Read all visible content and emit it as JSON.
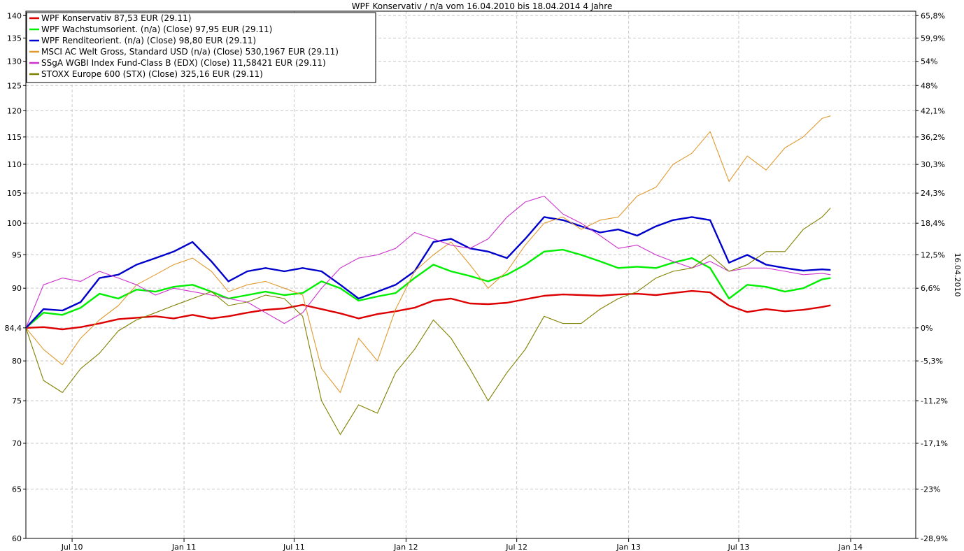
{
  "chart_data": {
    "type": "line",
    "title": "WPF Konservativ / n/a vom 16.04.2010 bis 18.04.2014 4 Jahre",
    "y2label": "16.04.2010",
    "x_ticks": [
      "Jul 10",
      "Jan 11",
      "Jul 11",
      "Jan 12",
      "Jul 12",
      "Jan 13",
      "Jul 13",
      "Jan 14"
    ],
    "x_tick_dates": [
      "2010-07-01",
      "2011-01-01",
      "2011-07-01",
      "2012-01-01",
      "2012-07-01",
      "2013-01-01",
      "2013-07-01",
      "2014-01-01"
    ],
    "xlim": [
      "2010-04-16",
      "2014-04-18"
    ],
    "ylim": [
      60,
      141
    ],
    "y_scale": "log",
    "baseline": 84.4,
    "y_ticks": [
      "60",
      "65",
      "70",
      "75",
      "80",
      "84,4",
      "90",
      "95",
      "100",
      "105",
      "110",
      "115",
      "120",
      "125",
      "130",
      "135",
      "140"
    ],
    "y2_ticks": [
      "65,8%",
      "59,9%",
      "54%",
      "48%",
      "42,1%",
      "36,2%",
      "30,3%",
      "24,3%",
      "18,4%",
      "12,5%",
      "6,6%",
      "0%",
      "-5,3%",
      "-11,2%",
      "-17,1%",
      "-23%",
      "-28,9%"
    ],
    "grid": true,
    "legend_position": "top-left",
    "dates": [
      "2010-04-16",
      "2010-05-15",
      "2010-06-15",
      "2010-07-15",
      "2010-08-15",
      "2010-09-15",
      "2010-10-15",
      "2010-11-15",
      "2010-12-15",
      "2011-01-15",
      "2011-02-15",
      "2011-03-15",
      "2011-04-15",
      "2011-05-15",
      "2011-06-15",
      "2011-07-15",
      "2011-08-15",
      "2011-09-15",
      "2011-10-15",
      "2011-11-15",
      "2011-12-15",
      "2012-01-15",
      "2012-02-15",
      "2012-03-15",
      "2012-04-15",
      "2012-05-15",
      "2012-06-15",
      "2012-07-15",
      "2012-08-15",
      "2012-09-15",
      "2012-10-15",
      "2012-11-15",
      "2012-12-15",
      "2013-01-15",
      "2013-02-15",
      "2013-03-15",
      "2013-04-15",
      "2013-05-15",
      "2013-06-15",
      "2013-07-15",
      "2013-08-15",
      "2013-09-15",
      "2013-10-15",
      "2013-11-15",
      "2013-11-29"
    ],
    "series": [
      {
        "name": "WPF Konservativ 87,53 EUR (29.11)",
        "color": "#dd0000",
        "width": 2.4,
        "values": [
          84.4,
          84.5,
          84.2,
          84.5,
          85.0,
          85.6,
          85.8,
          86.0,
          85.7,
          86.2,
          85.7,
          86.0,
          86.5,
          86.9,
          87.1,
          87.6,
          87.0,
          86.4,
          85.7,
          86.3,
          86.7,
          87.2,
          88.2,
          88.5,
          87.8,
          87.7,
          87.9,
          88.4,
          88.9,
          89.1,
          89.0,
          88.9,
          89.1,
          89.2,
          89.0,
          89.3,
          89.6,
          89.4,
          87.5,
          86.6,
          87.0,
          86.7,
          86.9,
          87.3,
          87.53
        ]
      },
      {
        "name": "WPF Wachstumsorient. (n/a) (Close) 97,95 EUR (29.11)",
        "color": "#00ee00",
        "width": 2.4,
        "values": [
          84.4,
          86.5,
          86.2,
          87.2,
          89.2,
          88.5,
          89.8,
          89.5,
          90.2,
          90.5,
          89.5,
          88.5,
          89.0,
          89.5,
          89.0,
          89.3,
          91.0,
          90.0,
          88.2,
          88.8,
          89.3,
          91.5,
          93.5,
          92.5,
          91.8,
          91.0,
          92.0,
          93.5,
          95.5,
          95.8,
          95.0,
          94.0,
          93.0,
          93.2,
          93.0,
          93.8,
          94.5,
          93.0,
          88.5,
          90.5,
          90.2,
          89.5,
          90.0,
          91.3,
          91.5
        ]
      },
      {
        "name": "WPF Renditeorient. (n/a) (Close) 98,80 EUR (29.11)",
        "color": "#0000cc",
        "width": 2.4,
        "values": [
          84.4,
          87.0,
          86.8,
          88.0,
          91.5,
          92.0,
          93.5,
          94.5,
          95.5,
          97.0,
          94.0,
          91.0,
          92.5,
          93.0,
          92.5,
          93.0,
          92.5,
          90.5,
          88.5,
          89.5,
          90.5,
          92.5,
          97.0,
          97.5,
          96.0,
          95.5,
          94.5,
          97.5,
          101.0,
          100.5,
          99.5,
          98.5,
          99.0,
          98.0,
          99.5,
          100.5,
          101.0,
          100.5,
          93.8,
          95.0,
          93.5,
          93.0,
          92.6,
          92.8,
          92.7
        ]
      },
      {
        "name": "MSCI AC Welt Gross, Standard USD (n/a) (Close) 530,1967 EUR (29.11)",
        "color": "#e09a30",
        "width": 1.1,
        "values": [
          84.4,
          81.5,
          79.5,
          83.0,
          85.5,
          87.5,
          90.5,
          92.0,
          93.5,
          94.5,
          92.5,
          89.5,
          90.5,
          91.0,
          90.0,
          89.0,
          79.0,
          76.0,
          83.0,
          80.0,
          87.0,
          92.5,
          95.0,
          97.0,
          93.5,
          90.0,
          92.5,
          96.5,
          100.0,
          101.0,
          99.0,
          100.5,
          101.0,
          104.5,
          106.0,
          110.0,
          112.0,
          116.0,
          107.0,
          111.5,
          109.0,
          113.0,
          115.0,
          118.5,
          119.0
        ]
      },
      {
        "name": "SSgA WGBI Index Fund-Class B (EDX) (Close) 11,58421 EUR (29.11)",
        "color": "#cc33cc",
        "width": 1.1,
        "values": [
          84.4,
          90.5,
          91.5,
          91.0,
          92.5,
          91.5,
          90.5,
          89.0,
          90.0,
          89.5,
          89.0,
          88.5,
          88.0,
          86.5,
          85.0,
          86.5,
          90.0,
          93.0,
          94.5,
          95.0,
          96.0,
          98.5,
          97.5,
          96.5,
          96.0,
          97.5,
          101.0,
          103.5,
          104.5,
          101.5,
          100.0,
          98.0,
          96.0,
          96.5,
          95.0,
          94.0,
          93.0,
          94.0,
          92.5,
          93.0,
          93.0,
          92.5,
          92.0,
          92.2,
          92.0
        ]
      },
      {
        "name": "STOXX Europe 600 (STX) (Close) 325,16 EUR (29.11)",
        "color": "#808000",
        "width": 1.1,
        "values": [
          84.4,
          77.5,
          76.0,
          79.0,
          81.0,
          84.0,
          85.5,
          86.5,
          87.5,
          88.5,
          89.5,
          87.5,
          88.0,
          89.0,
          88.5,
          86.0,
          75.0,
          71.0,
          74.5,
          73.5,
          78.5,
          81.5,
          85.5,
          83.0,
          79.0,
          75.0,
          78.5,
          81.5,
          86.0,
          85.0,
          85.0,
          87.0,
          88.5,
          89.5,
          91.5,
          92.5,
          93.0,
          95.0,
          92.5,
          93.5,
          95.5,
          95.5,
          99.0,
          101.0,
          102.5
        ]
      }
    ]
  }
}
